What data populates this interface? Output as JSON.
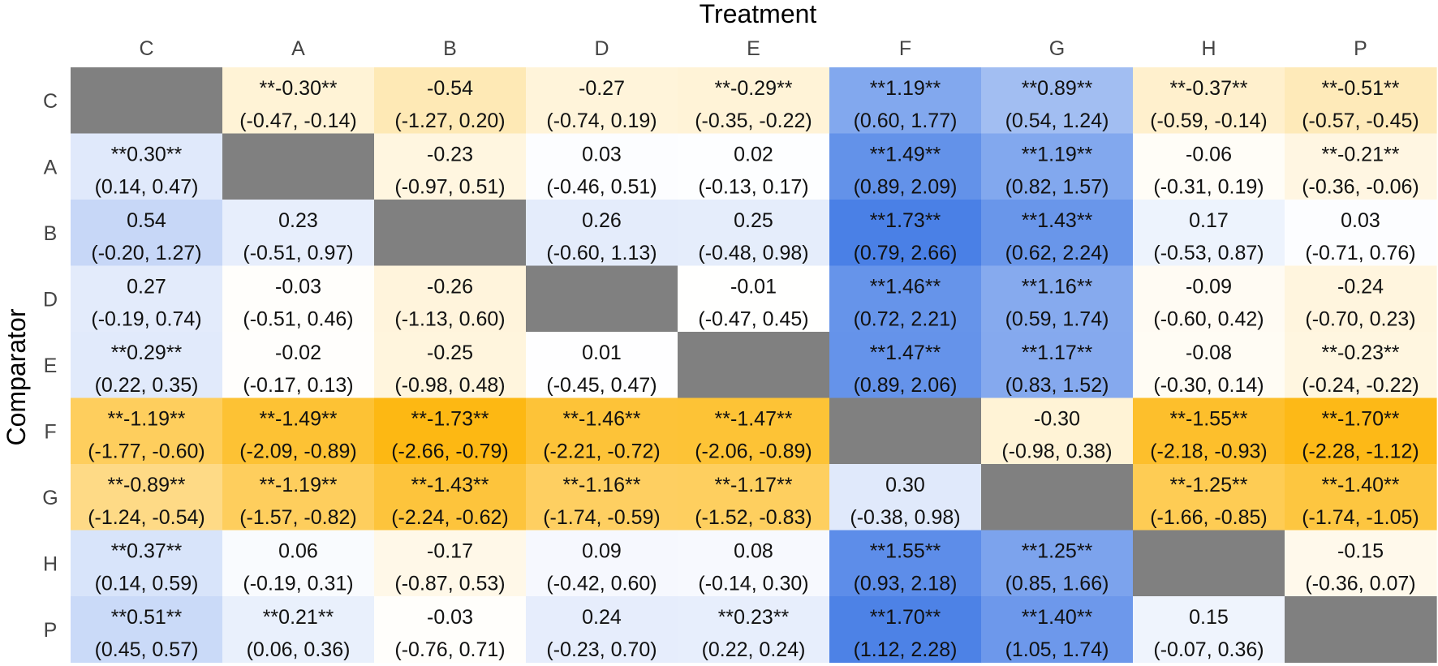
{
  "chart_data": {
    "type": "heatmap",
    "x_title": "Treatment",
    "y_title": "Comparator",
    "columns": [
      "C",
      "A",
      "B",
      "D",
      "E",
      "F",
      "G",
      "H",
      "P"
    ],
    "rows": [
      "C",
      "A",
      "B",
      "D",
      "E",
      "F",
      "G",
      "H",
      "P"
    ],
    "diagonal_color": "#808080",
    "color_scale": {
      "negative": "#FDB813",
      "zero": "#FFFFFF",
      "positive": "#4A80E6",
      "max_abs": 1.73
    },
    "cells": [
      [
        null,
        {
          "value": -0.3,
          "label": "**-0.30**",
          "ci": "(-0.47, -0.14)"
        },
        {
          "value": -0.54,
          "label": "-0.54",
          "ci": "(-1.27, 0.20)"
        },
        {
          "value": -0.27,
          "label": "-0.27",
          "ci": "(-0.74, 0.19)"
        },
        {
          "value": -0.29,
          "label": "**-0.29**",
          "ci": "(-0.35, -0.22)"
        },
        {
          "value": 1.19,
          "label": "**1.19**",
          "ci": "(0.60, 1.77)"
        },
        {
          "value": 0.89,
          "label": "**0.89**",
          "ci": "(0.54, 1.24)"
        },
        {
          "value": -0.37,
          "label": "**-0.37**",
          "ci": "(-0.59, -0.14)"
        },
        {
          "value": -0.51,
          "label": "**-0.51**",
          "ci": "(-0.57, -0.45)"
        }
      ],
      [
        {
          "value": 0.3,
          "label": "**0.30**",
          "ci": "(0.14, 0.47)"
        },
        null,
        {
          "value": -0.23,
          "label": "-0.23",
          "ci": "(-0.97, 0.51)"
        },
        {
          "value": 0.03,
          "label": "0.03",
          "ci": "(-0.46, 0.51)"
        },
        {
          "value": 0.02,
          "label": "0.02",
          "ci": "(-0.13, 0.17)"
        },
        {
          "value": 1.49,
          "label": "**1.49**",
          "ci": "(0.89, 2.09)"
        },
        {
          "value": 1.19,
          "label": "**1.19**",
          "ci": "(0.82, 1.57)"
        },
        {
          "value": -0.06,
          "label": "-0.06",
          "ci": "(-0.31, 0.19)"
        },
        {
          "value": -0.21,
          "label": "**-0.21**",
          "ci": "(-0.36, -0.06)"
        }
      ],
      [
        {
          "value": 0.54,
          "label": "0.54",
          "ci": "(-0.20, 1.27)"
        },
        {
          "value": 0.23,
          "label": "0.23",
          "ci": "(-0.51, 0.97)"
        },
        null,
        {
          "value": 0.26,
          "label": "0.26",
          "ci": "(-0.60, 1.13)"
        },
        {
          "value": 0.25,
          "label": "0.25",
          "ci": "(-0.48, 0.98)"
        },
        {
          "value": 1.73,
          "label": "**1.73**",
          "ci": "(0.79, 2.66)"
        },
        {
          "value": 1.43,
          "label": "**1.43**",
          "ci": "(0.62, 2.24)"
        },
        {
          "value": 0.17,
          "label": "0.17",
          "ci": "(-0.53, 0.87)"
        },
        {
          "value": 0.03,
          "label": "0.03",
          "ci": "(-0.71, 0.76)"
        }
      ],
      [
        {
          "value": 0.27,
          "label": "0.27",
          "ci": "(-0.19, 0.74)"
        },
        {
          "value": -0.03,
          "label": "-0.03",
          "ci": "(-0.51, 0.46)"
        },
        {
          "value": -0.26,
          "label": "-0.26",
          "ci": "(-1.13, 0.60)"
        },
        null,
        {
          "value": -0.01,
          "label": "-0.01",
          "ci": "(-0.47, 0.45)"
        },
        {
          "value": 1.46,
          "label": "**1.46**",
          "ci": "(0.72, 2.21)"
        },
        {
          "value": 1.16,
          "label": "**1.16**",
          "ci": "(0.59, 1.74)"
        },
        {
          "value": -0.09,
          "label": "-0.09",
          "ci": "(-0.60, 0.42)"
        },
        {
          "value": -0.24,
          "label": "-0.24",
          "ci": "(-0.70, 0.23)"
        }
      ],
      [
        {
          "value": 0.29,
          "label": "**0.29**",
          "ci": "(0.22, 0.35)"
        },
        {
          "value": -0.02,
          "label": "-0.02",
          "ci": "(-0.17, 0.13)"
        },
        {
          "value": -0.25,
          "label": "-0.25",
          "ci": "(-0.98, 0.48)"
        },
        {
          "value": 0.01,
          "label": "0.01",
          "ci": "(-0.45, 0.47)"
        },
        null,
        {
          "value": 1.47,
          "label": "**1.47**",
          "ci": "(0.89, 2.06)"
        },
        {
          "value": 1.17,
          "label": "**1.17**",
          "ci": "(0.83, 1.52)"
        },
        {
          "value": -0.08,
          "label": "-0.08",
          "ci": "(-0.30, 0.14)"
        },
        {
          "value": -0.23,
          "label": "**-0.23**",
          "ci": "(-0.24, -0.22)"
        }
      ],
      [
        {
          "value": -1.19,
          "label": "**-1.19**",
          "ci": "(-1.77, -0.60)"
        },
        {
          "value": -1.49,
          "label": "**-1.49**",
          "ci": "(-2.09, -0.89)"
        },
        {
          "value": -1.73,
          "label": "**-1.73**",
          "ci": "(-2.66, -0.79)"
        },
        {
          "value": -1.46,
          "label": "**-1.46**",
          "ci": "(-2.21, -0.72)"
        },
        {
          "value": -1.47,
          "label": "**-1.47**",
          "ci": "(-2.06, -0.89)"
        },
        null,
        {
          "value": -0.3,
          "label": "-0.30",
          "ci": "(-0.98, 0.38)"
        },
        {
          "value": -1.55,
          "label": "**-1.55**",
          "ci": "(-2.18, -0.93)"
        },
        {
          "value": -1.7,
          "label": "**-1.70**",
          "ci": "(-2.28, -1.12)"
        }
      ],
      [
        {
          "value": -0.89,
          "label": "**-0.89**",
          "ci": "(-1.24, -0.54)"
        },
        {
          "value": -1.19,
          "label": "**-1.19**",
          "ci": "(-1.57, -0.82)"
        },
        {
          "value": -1.43,
          "label": "**-1.43**",
          "ci": "(-2.24, -0.62)"
        },
        {
          "value": -1.16,
          "label": "**-1.16**",
          "ci": "(-1.74, -0.59)"
        },
        {
          "value": -1.17,
          "label": "**-1.17**",
          "ci": "(-1.52, -0.83)"
        },
        {
          "value": 0.3,
          "label": "0.30",
          "ci": "(-0.38, 0.98)"
        },
        null,
        {
          "value": -1.25,
          "label": "**-1.25**",
          "ci": "(-1.66, -0.85)"
        },
        {
          "value": -1.4,
          "label": "**-1.40**",
          "ci": "(-1.74, -1.05)"
        }
      ],
      [
        {
          "value": 0.37,
          "label": "**0.37**",
          "ci": "(0.14, 0.59)"
        },
        {
          "value": 0.06,
          "label": "0.06",
          "ci": "(-0.19, 0.31)"
        },
        {
          "value": -0.17,
          "label": "-0.17",
          "ci": "(-0.87, 0.53)"
        },
        {
          "value": 0.09,
          "label": "0.09",
          "ci": "(-0.42, 0.60)"
        },
        {
          "value": 0.08,
          "label": "0.08",
          "ci": "(-0.14, 0.30)"
        },
        {
          "value": 1.55,
          "label": "**1.55**",
          "ci": "(0.93, 2.18)"
        },
        {
          "value": 1.25,
          "label": "**1.25**",
          "ci": "(0.85, 1.66)"
        },
        null,
        {
          "value": -0.15,
          "label": "-0.15",
          "ci": "(-0.36, 0.07)"
        }
      ],
      [
        {
          "value": 0.51,
          "label": "**0.51**",
          "ci": "(0.45, 0.57)"
        },
        {
          "value": 0.21,
          "label": "**0.21**",
          "ci": "(0.06, 0.36)"
        },
        {
          "value": -0.03,
          "label": "-0.03",
          "ci": "(-0.76, 0.71)"
        },
        {
          "value": 0.24,
          "label": "0.24",
          "ci": "(-0.23, 0.70)"
        },
        {
          "value": 0.23,
          "label": "**0.23**",
          "ci": "(0.22, 0.24)"
        },
        {
          "value": 1.7,
          "label": "**1.70**",
          "ci": "(1.12, 2.28)"
        },
        {
          "value": 1.4,
          "label": "**1.40**",
          "ci": "(1.05, 1.74)"
        },
        {
          "value": 0.15,
          "label": "0.15",
          "ci": "(-0.07, 0.36)"
        },
        null
      ]
    ]
  }
}
